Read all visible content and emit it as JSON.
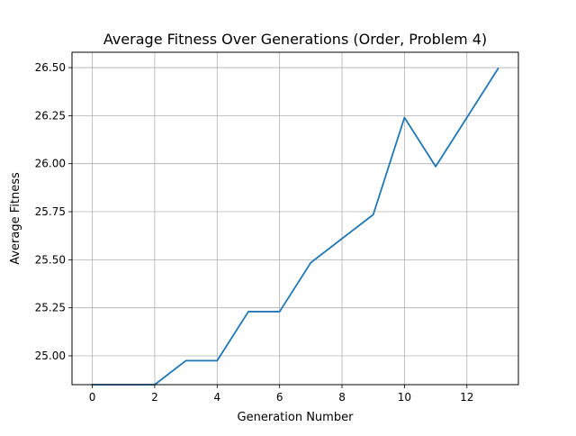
{
  "chart_data": {
    "type": "line",
    "title": "Average Fitness Over Generations (Order, Problem 4)",
    "xlabel": "Generation Number",
    "ylabel": "Average Fitness",
    "xlim": [
      -0.65,
      13.65
    ],
    "ylim": [
      24.85,
      26.58
    ],
    "x_ticks": [
      0,
      2,
      4,
      6,
      8,
      10,
      12
    ],
    "y_ticks": [
      25.0,
      25.25,
      25.5,
      25.75,
      26.0,
      26.25,
      26.5
    ],
    "x_tick_labels": [
      "0",
      "2",
      "4",
      "6",
      "8",
      "10",
      "12"
    ],
    "y_tick_labels": [
      "25.00",
      "25.25",
      "25.50",
      "25.75",
      "26.00",
      "26.25",
      "26.50"
    ],
    "grid": true,
    "series": [
      {
        "color": "#1f77b4",
        "x": [
          0,
          1,
          2,
          3,
          4,
          5,
          6,
          7,
          8,
          9,
          10,
          11,
          12,
          13
        ],
        "y": [
          24.85,
          24.85,
          24.85,
          24.975,
          24.975,
          25.23,
          25.23,
          25.485,
          25.61,
          25.735,
          26.24,
          25.985,
          26.24,
          26.495
        ]
      }
    ]
  }
}
